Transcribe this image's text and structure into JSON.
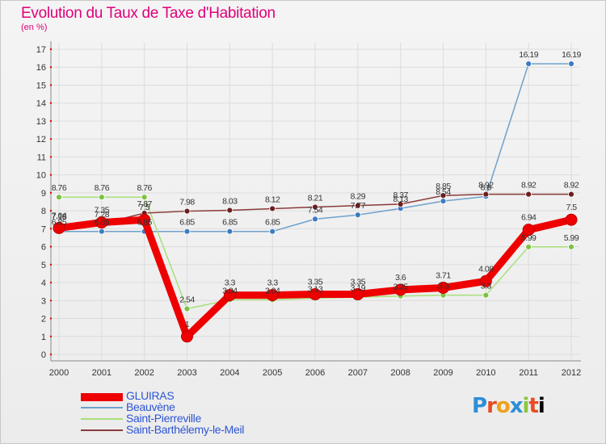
{
  "title": "Evolution du Taux de Taxe d'Habitation",
  "subtitle": "(en %)",
  "logo": [
    "P",
    "r",
    "o",
    "x",
    "i",
    "t",
    "i"
  ],
  "chart_data": {
    "type": "line",
    "x": [
      "2000",
      "2001",
      "2002",
      "2003",
      "2004",
      "2005",
      "2006",
      "2007",
      "2008",
      "2009",
      "2010",
      "2011",
      "2012"
    ],
    "y_ticks": [
      0,
      1,
      2,
      3,
      4,
      5,
      6,
      7,
      8,
      9,
      10,
      11,
      12,
      13,
      14,
      15,
      16,
      17
    ],
    "ylim": [
      0,
      17
    ],
    "grid": true,
    "legend_position": "bottom-left",
    "series": [
      {
        "name": "GLUIRAS",
        "color": "#ee0000",
        "marker": "#ee0000",
        "values": [
          7.04,
          7.35,
          7.5,
          1,
          3.3,
          3.3,
          3.35,
          3.35,
          3.6,
          3.71,
          4.08,
          6.94,
          7.5
        ],
        "labels": [
          "7.04",
          "7.35",
          "7.5",
          "1",
          "3.3",
          "3.3",
          "3.35",
          "3.35",
          "3.6",
          "3.71",
          "4.08",
          "6.94",
          "7.5"
        ]
      },
      {
        "name": "Beauvène",
        "color": "#6fa1cc",
        "marker": "#3c7cc0",
        "values": [
          6.85,
          6.85,
          6.85,
          6.85,
          6.85,
          6.85,
          7.54,
          7.77,
          8.13,
          8.54,
          8.8,
          16.19,
          16.19
        ],
        "labels": [
          "6.85",
          "6.85",
          "6.85",
          "6.85",
          "6.85",
          "6.85",
          "7.54",
          "7.77",
          "8.13",
          "8.54",
          "8.8",
          "16.19",
          "16.19"
        ]
      },
      {
        "name": "Saint-Pierreville",
        "color": "#a8e07a",
        "marker": "#7cc242",
        "values": [
          8.76,
          8.76,
          8.76,
          2.54,
          3.04,
          3.04,
          3.13,
          3.19,
          3.25,
          3.3,
          3.3,
          5.99,
          5.99
        ],
        "labels": [
          "8.76",
          "8.76",
          "8.76",
          "2.54",
          "3.04",
          "3.04",
          "3.13",
          "3.19",
          "3.25",
          "3.3",
          "3.3",
          "5.99",
          "5.99"
        ]
      },
      {
        "name": "Saint-Barthélemy-le-Meil",
        "color": "#8a3a3a",
        "marker": "#6e1e1e",
        "values": [
          7.18,
          7.28,
          7.87,
          7.98,
          8.03,
          8.12,
          8.21,
          8.29,
          8.37,
          8.85,
          8.92,
          8.92,
          8.92
        ],
        "labels": [
          "7.18",
          "7.28",
          "7.87",
          "7.98",
          "8.03",
          "8.12",
          "8.21",
          "8.29",
          "8.37",
          "8.85",
          "8.92",
          "8.92",
          "8.92"
        ]
      }
    ]
  }
}
